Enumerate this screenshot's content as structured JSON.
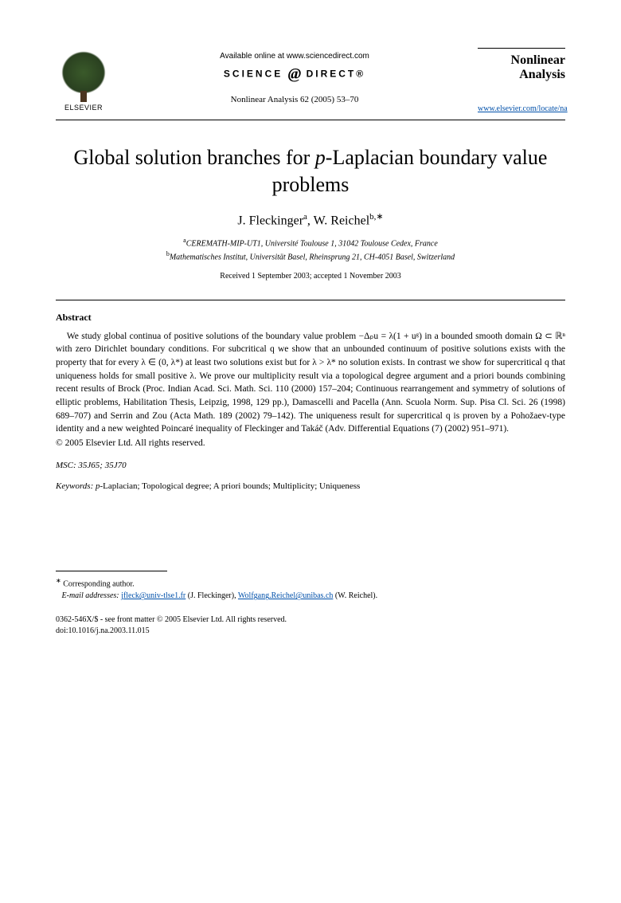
{
  "header": {
    "publisher_name": "ELSEVIER",
    "available_online": "Available online at www.sciencedirect.com",
    "science_direct_pre": "SCIENCE",
    "science_direct_at": "@",
    "science_direct_post": "DIRECT®",
    "journal_reference": "Nonlinear Analysis 62 (2005) 53–70",
    "journal_name_line1": "Nonlinear",
    "journal_name_line2": "Analysis",
    "journal_url": "www.elsevier.com/locate/na"
  },
  "title": {
    "pre": "Global solution branches for ",
    "ital": "p",
    "post": "-Laplacian boundary value problems"
  },
  "authors": {
    "a1_name": "J. Fleckinger",
    "a1_sup": "a",
    "a2_name": "W. Reichel",
    "a2_sup": "b,∗"
  },
  "affiliations": {
    "a_sup": "a",
    "a_text": "CEREMATH-MIP-UT1, Université Toulouse 1, 31042 Toulouse Cedex, France",
    "b_sup": "b",
    "b_text": "Mathematisches Institut, Universität Basel, Rheinsprung 21, CH-4051 Basel, Switzerland"
  },
  "dates": "Received 1 September 2003; accepted 1 November 2003",
  "abstract": {
    "heading": "Abstract",
    "body": "We study global continua of positive solutions of the boundary value problem −Δₚu = λ(1 + uᵍ) in a bounded smooth domain Ω ⊂ ℝⁿ with zero Dirichlet boundary conditions. For subcritical q we show that an unbounded continuum of positive solutions exists with the property that for every λ ∈ (0, λ*) at least two solutions exist but for λ > λ* no solution exists. In contrast we show for supercritical q that uniqueness holds for small positive λ. We prove our multiplicity result via a topological degree argument and a priori bounds combining recent results of Brock (Proc. Indian Acad. Sci. Math. Sci. 110 (2000) 157–204; Continuous rearrangement and symmetry of solutions of elliptic problems, Habilitation Thesis, Leipzig, 1998, 129 pp.), Damascelli and Pacella (Ann. Scuola Norm. Sup. Pisa Cl. Sci. 26 (1998) 689–707) and Serrin and Zou (Acta Math. 189 (2002) 79–142). The uniqueness result for supercritical q is proven by a Pohožaev-type identity and a new weighted Poincaré inequality of Fleckinger and Takáč (Adv. Differential Equations (7) (2002) 951–971).",
    "copyright": "© 2005 Elsevier Ltd. All rights reserved."
  },
  "msc": {
    "label": "MSC:",
    "codes": " 35J65; 35J70"
  },
  "keywords": {
    "label": "Keywords:",
    "text_pre": " ",
    "text_p": "p",
    "text_post": "-Laplacian; Topological degree; A priori bounds; Multiplicity; Uniqueness"
  },
  "footnote": {
    "corr_sup": "∗",
    "corr_text": " Corresponding author.",
    "email_label": "E-mail addresses:",
    "email1": "jfleck@univ-tlse1.fr",
    "email1_attr": " (J. Fleckinger), ",
    "email2": "Wolfgang.Reichel@unibas.ch",
    "email2_attr": " (W. Reichel)."
  },
  "bottom": {
    "issn_line": "0362-546X/$ - see front matter © 2005 Elsevier Ltd. All rights reserved.",
    "doi_line": "doi:10.1016/j.na.2003.11.015"
  },
  "colors": {
    "link": "#0050aa",
    "text": "#000000",
    "background": "#ffffff"
  }
}
